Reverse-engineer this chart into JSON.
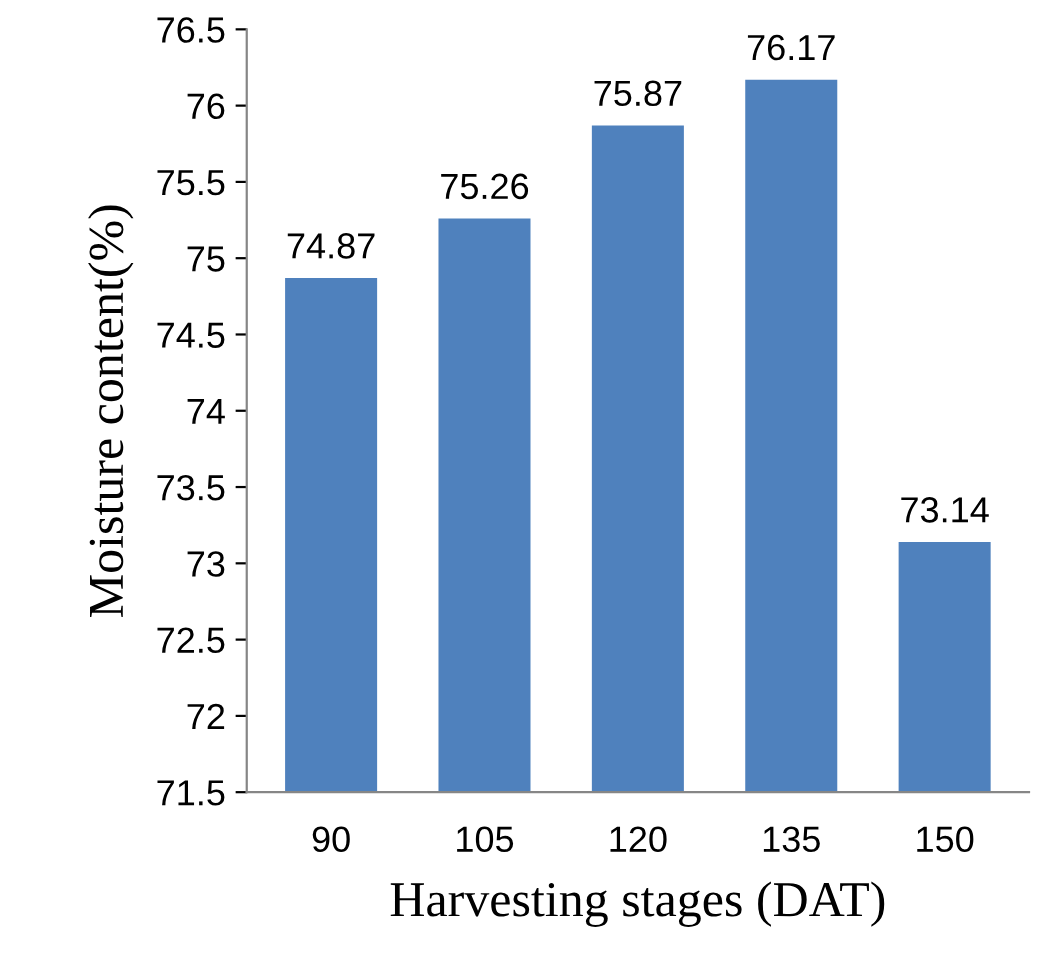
{
  "chart_data": {
    "type": "bar",
    "xlabel": "Harvesting stages (DAT)",
    "ylabel": "Moisture content(%)",
    "categories": [
      "90",
      "105",
      "120",
      "135",
      "150"
    ],
    "values": [
      74.87,
      75.26,
      75.87,
      76.17,
      73.14
    ],
    "color": "#4f81bd",
    "ylim": [
      71.5,
      76.5
    ],
    "yticks": [
      71.5,
      72,
      72.5,
      73,
      73.5,
      74,
      74.5,
      75,
      75.5,
      76,
      76.5
    ],
    "data_labels": true,
    "grid": false,
    "legend": false
  }
}
